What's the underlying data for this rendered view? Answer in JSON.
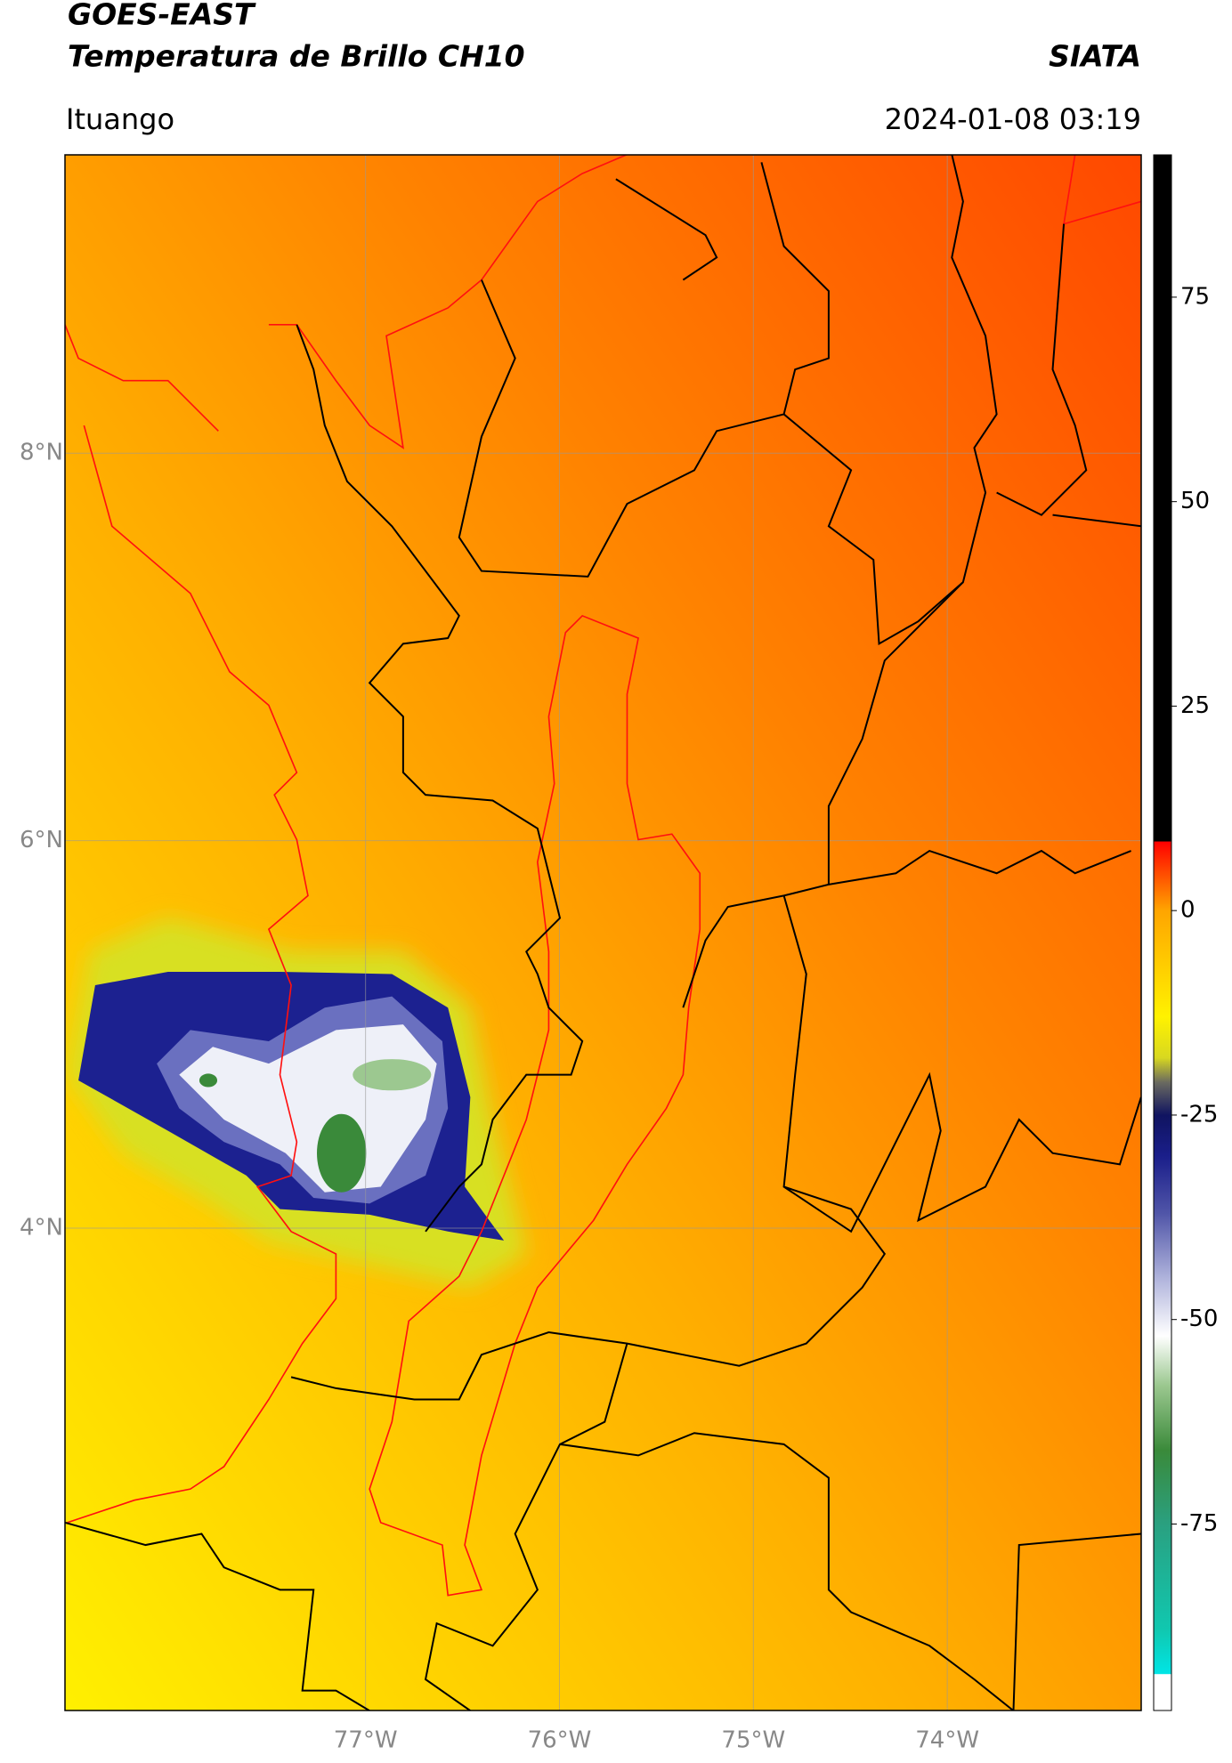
{
  "header": {
    "satellite": "GOES-EAST",
    "product": "Temperatura de Brillo CH10",
    "agency": "SIATA",
    "region": "Ituango",
    "datetime": "2024-01-08 03:19"
  },
  "chart_data": {
    "type": "map",
    "xlim": [
      -78.55,
      -73.0
    ],
    "ylim": [
      1.51,
      9.54
    ],
    "xticks": [
      {
        "value": -77,
        "label": "77°W"
      },
      {
        "value": -76,
        "label": "76°W"
      },
      {
        "value": -75,
        "label": "75°W"
      },
      {
        "value": -74,
        "label": "74°W"
      }
    ],
    "yticks": [
      {
        "value": 4,
        "label": "4°N"
      },
      {
        "value": 6,
        "label": "6°N"
      },
      {
        "value": 8,
        "label": "8°N"
      }
    ],
    "grid": true,
    "colorbar": {
      "lim": [
        -97.8,
        92.4
      ],
      "ticks": [
        -75,
        -50,
        -25,
        0,
        25,
        50,
        75
      ],
      "stops": [
        {
          "value": -97.8,
          "color": "#ffffff"
        },
        {
          "value": -93.4,
          "color": "#ffffff"
        },
        {
          "value": -93.3,
          "color": "#00e5e5"
        },
        {
          "value": -88,
          "color": "#10c8b0"
        },
        {
          "value": -75,
          "color": "#2aa080"
        },
        {
          "value": -66,
          "color": "#3a8a3a"
        },
        {
          "value": -58,
          "color": "#9cc890"
        },
        {
          "value": -52,
          "color": "#ffffff"
        },
        {
          "value": -45,
          "color": "#b0b4dc"
        },
        {
          "value": -37,
          "color": "#5055a8"
        },
        {
          "value": -30,
          "color": "#1a1e8a"
        },
        {
          "value": -25,
          "color": "#101460"
        },
        {
          "value": -21,
          "color": "#6a6a60"
        },
        {
          "value": -18,
          "color": "#d8d820"
        },
        {
          "value": -13,
          "color": "#fff200"
        },
        {
          "value": 0,
          "color": "#ffa500"
        },
        {
          "value": 3,
          "color": "#ff6a00"
        },
        {
          "value": 8.4,
          "color": "#ff0000"
        },
        {
          "value": 8.5,
          "color": "#000000"
        },
        {
          "value": 92.4,
          "color": "#000000"
        }
      ]
    }
  }
}
